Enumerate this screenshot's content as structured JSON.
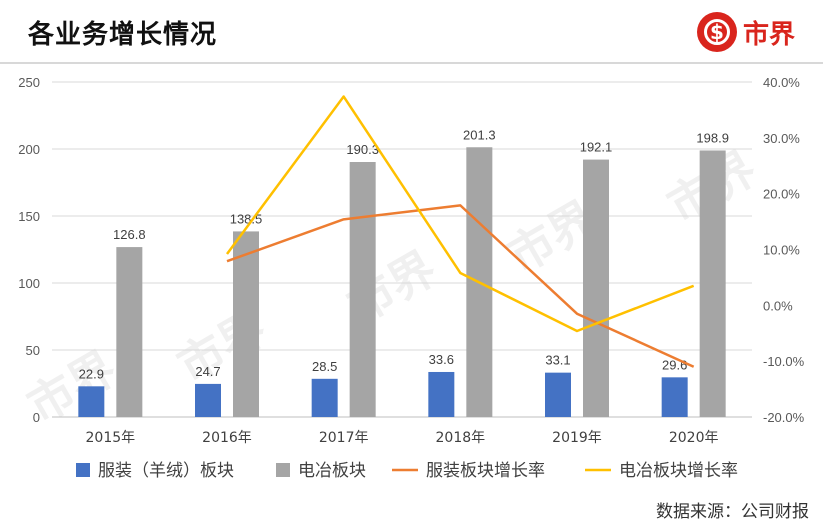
{
  "header": {
    "title": "各业务增长情况",
    "brand_name": "市界"
  },
  "watermark": {
    "text": "市界"
  },
  "source_text": "数据来源：公司财报",
  "chart_data": {
    "type": "bar",
    "categories": [
      "2015年",
      "2016年",
      "2017年",
      "2018年",
      "2019年",
      "2020年"
    ],
    "series": [
      {
        "name": "服装（羊绒）板块",
        "kind": "bar",
        "axis": "left",
        "color": "#4472c4",
        "values": [
          22.9,
          24.7,
          28.5,
          33.6,
          33.1,
          29.6
        ]
      },
      {
        "name": "电冶板块",
        "kind": "bar",
        "axis": "left",
        "color": "#a5a5a5",
        "values": [
          126.8,
          138.5,
          190.3,
          201.3,
          192.1,
          198.9
        ]
      },
      {
        "name": "服装板块增长率",
        "kind": "line",
        "axis": "right",
        "color": "#ed7d31",
        "values": [
          null,
          7.9,
          15.4,
          17.9,
          -1.5,
          -11.0
        ]
      },
      {
        "name": "电冶板块增长率",
        "kind": "line",
        "axis": "right",
        "color": "#ffc000",
        "values": [
          null,
          9.2,
          37.4,
          5.8,
          -4.6,
          3.5
        ]
      }
    ],
    "y_left": {
      "min": 0,
      "max": 250,
      "ticks": [
        "0",
        "50",
        "100",
        "150",
        "200",
        "250"
      ]
    },
    "y_right": {
      "min": -20,
      "max": 40,
      "ticks": [
        "-20.0%",
        "-10.0%",
        "0.0%",
        "10.0%",
        "20.0%",
        "30.0%",
        "40.0%"
      ]
    },
    "legend_position": "bottom",
    "grid": true
  }
}
